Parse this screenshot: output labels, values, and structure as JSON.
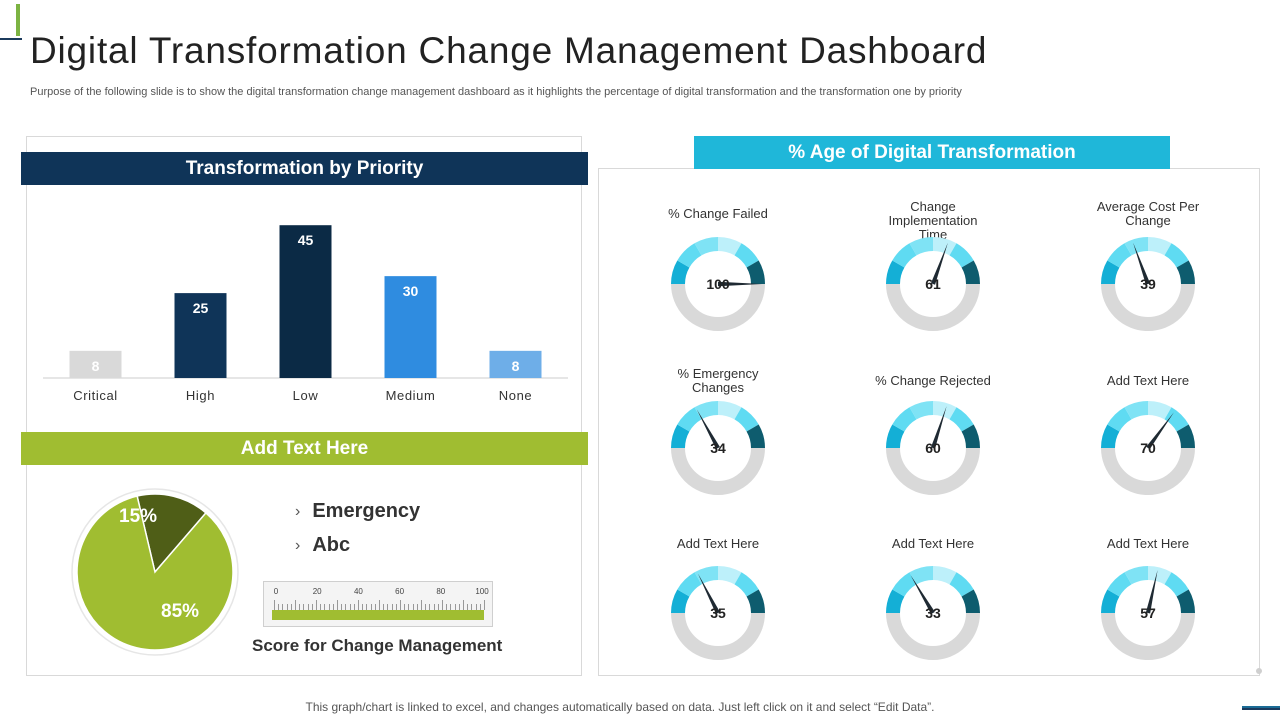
{
  "title": "Digital Transformation Change Management Dashboard",
  "subtitle": "Purpose of the following slide is to show the digital transformation change management dashboard as it highlights the percentage of digital transformation and the transformation one by priority",
  "priority_panel": {
    "title": "Transformation by Priority"
  },
  "add_text_panel": {
    "title": "Add Text Here"
  },
  "pie_panel": {
    "slices": [
      {
        "label": "15%",
        "value": 15,
        "color": "#4f5e17"
      },
      {
        "label": "85%",
        "value": 85,
        "color": "#a0bd31"
      }
    ],
    "legend": [
      {
        "chevron": "›",
        "label": "Emergency"
      },
      {
        "chevron": "›",
        "label": "Abc"
      }
    ]
  },
  "score_scale": {
    "ticks": [
      "0",
      "20",
      "40",
      "60",
      "80",
      "100"
    ],
    "value": 100,
    "label": "Score for Change Management"
  },
  "transformation_panel": {
    "title": "% Age of Digital Transformation"
  },
  "gauges": [
    {
      "label": "% Change Failed",
      "value": 100
    },
    {
      "label": "Change Implementation Time",
      "value": 61
    },
    {
      "label": "Average Cost Per Change",
      "value": 39
    },
    {
      "label": "% Emergency Changes",
      "value": 34
    },
    {
      "label": "% Change Rejected",
      "value": 60
    },
    {
      "label": "Add Text Here",
      "value": 70
    },
    {
      "label": "Add Text Here",
      "value": 35
    },
    {
      "label": "Add Text Here",
      "value": 33
    },
    {
      "label": "Add Text Here",
      "value": 57
    }
  ],
  "gauge_colors": [
    "#14afd6",
    "#5fdbf2",
    "#7fe3f5",
    "#bdf0fa",
    "#0e5c6e"
  ],
  "gauge_track_color": "#d9d9d9",
  "footer": "This graph/chart is linked to excel,  and changes automatically based on data. Just left click on it and select “Edit Data”.",
  "chart_data": {
    "type": "bar",
    "title": "Transformation by Priority",
    "categories": [
      "Critical",
      "High",
      "Low",
      "Medium",
      "None"
    ],
    "values": [
      8,
      25,
      45,
      30,
      8
    ],
    "colors": [
      "#d9d9d9",
      "#0f3458",
      "#0b2a45",
      "#2f8ce0",
      "#6eaee8"
    ],
    "ylim": [
      0,
      50
    ],
    "grid": false,
    "legend": false
  }
}
